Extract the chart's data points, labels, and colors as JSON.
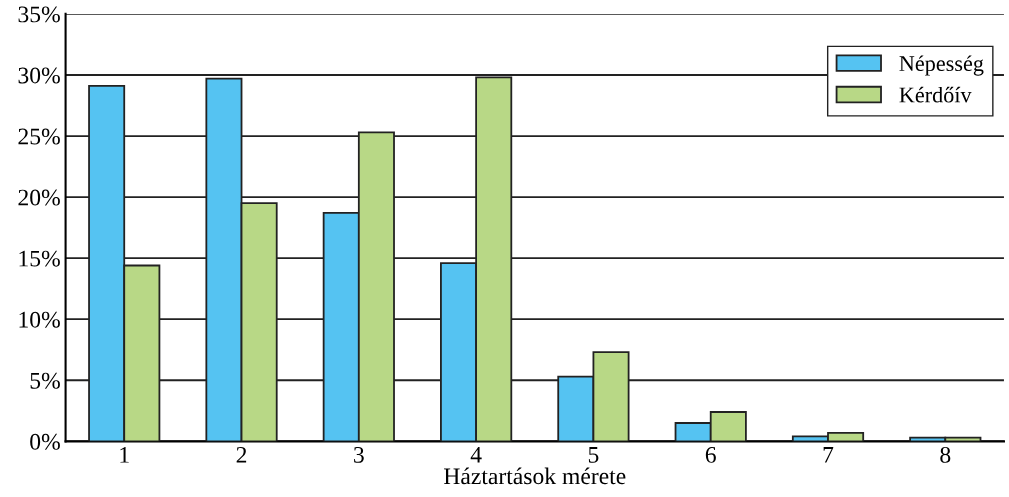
{
  "chart_data": {
    "type": "bar",
    "xlabel": "Háztartások mérete",
    "categories": [
      "1",
      "2",
      "3",
      "4",
      "5",
      "6",
      "7",
      "8"
    ],
    "series": [
      {
        "name": "Népesség",
        "color": "#55c3f2",
        "values": [
          29.1,
          29.7,
          18.7,
          14.6,
          5.3,
          1.5,
          0.4,
          0.3
        ]
      },
      {
        "name": "Kérdőív",
        "color": "#b8d886",
        "values": [
          14.4,
          19.5,
          25.3,
          29.8,
          7.3,
          2.4,
          0.7,
          0.3
        ]
      }
    ],
    "ylim": [
      0,
      35
    ],
    "yticks": [
      {
        "value": 0,
        "label": "0%"
      },
      {
        "value": 5,
        "label": "5%"
      },
      {
        "value": 10,
        "label": "10%"
      },
      {
        "value": 15,
        "label": "15%"
      },
      {
        "value": 20,
        "label": "20%"
      },
      {
        "value": 25,
        "label": "25%"
      },
      {
        "value": 30,
        "label": "30%"
      },
      {
        "value": 35,
        "label": "35%"
      }
    ],
    "grid": "y",
    "legend": "top right"
  }
}
